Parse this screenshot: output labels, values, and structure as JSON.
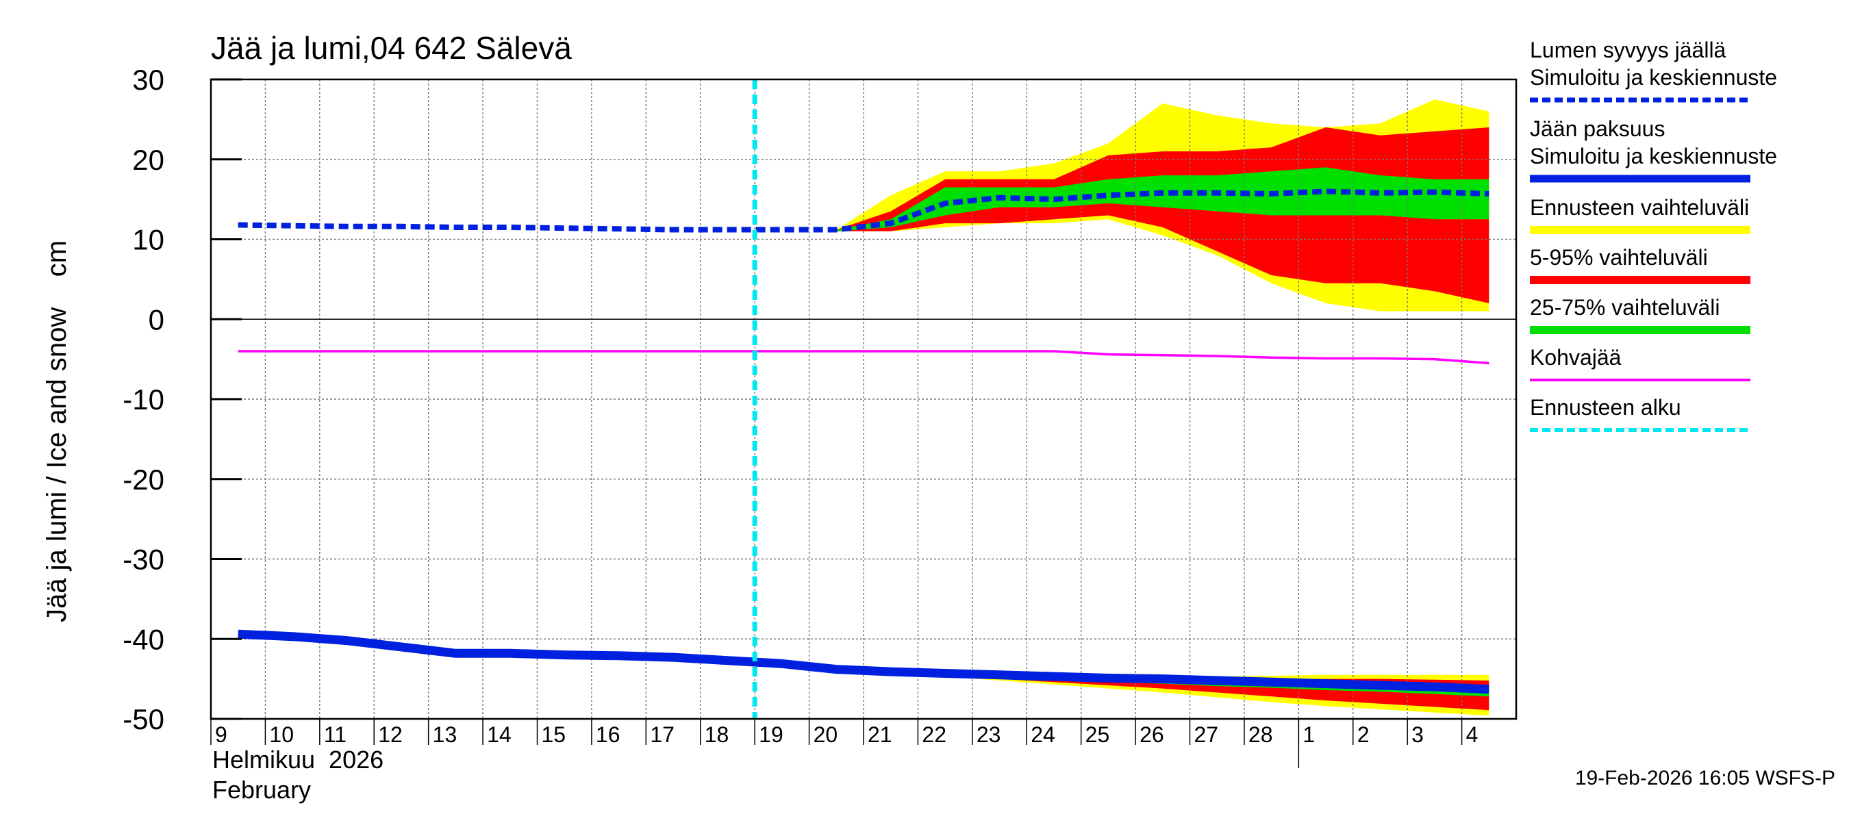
{
  "chart_data": {
    "type": "area",
    "title": "Jää ja lumi,04 642 Sälevä",
    "ylabel": "Jää ja lumi / Ice and snow    cm",
    "ylim": [
      -50,
      30
    ],
    "yticks": [
      30,
      20,
      10,
      0,
      -10,
      -20,
      -30,
      -40,
      -50
    ],
    "x_day_labels": [
      "9",
      "10",
      "11",
      "12",
      "13",
      "14",
      "15",
      "16",
      "17",
      "18",
      "19",
      "20",
      "21",
      "22",
      "23",
      "24",
      "25",
      "26",
      "27",
      "28",
      "1",
      "2",
      "3",
      "4"
    ],
    "x_dates": [
      "2026-02-09",
      "2026-02-10",
      "2026-02-11",
      "2026-02-12",
      "2026-02-13",
      "2026-02-14",
      "2026-02-15",
      "2026-02-16",
      "2026-02-17",
      "2026-02-18",
      "2026-02-19",
      "2026-02-20",
      "2026-02-21",
      "2026-02-22",
      "2026-02-23",
      "2026-02-24",
      "2026-02-25",
      "2026-02-26",
      "2026-02-27",
      "2026-02-28",
      "2026-03-01",
      "2026-03-02",
      "2026-03-03",
      "2026-03-04"
    ],
    "month_label_line1": "Helmikuu  2026",
    "month_label_line2": "February",
    "forecast_start": "2026-02-19",
    "grid": true,
    "legend_position": "right",
    "series": [
      {
        "name": "Ennusteen vaihteluväli",
        "group": "snow",
        "kind": "band",
        "color": "#ffff00",
        "x": [
          "2026-02-20",
          "2026-02-21",
          "2026-02-22",
          "2026-02-23",
          "2026-02-24",
          "2026-02-25",
          "2026-02-26",
          "2026-02-27",
          "2026-02-28",
          "2026-03-01",
          "2026-03-02",
          "2026-03-03",
          "2026-03-04"
        ],
        "upper": [
          11.2,
          15.5,
          18.5,
          18.5,
          19.5,
          22,
          27,
          25.5,
          24.5,
          24,
          24.5,
          27.5,
          26
        ],
        "lower": [
          11.0,
          11.0,
          11.5,
          12,
          12,
          12.5,
          10.5,
          8,
          4.5,
          2,
          1,
          1,
          1
        ]
      },
      {
        "name": "5-95% vaihteluväli",
        "group": "snow",
        "kind": "band",
        "color": "#ff0000",
        "x": [
          "2026-02-20",
          "2026-02-21",
          "2026-02-22",
          "2026-02-23",
          "2026-02-24",
          "2026-02-25",
          "2026-02-26",
          "2026-02-27",
          "2026-02-28",
          "2026-03-01",
          "2026-03-02",
          "2026-03-03",
          "2026-03-04"
        ],
        "upper": [
          11.2,
          13.5,
          17.5,
          17.5,
          17.5,
          20.5,
          21,
          21,
          21.5,
          24,
          23,
          23.5,
          24
        ],
        "lower": [
          11.0,
          11.0,
          12,
          12,
          12.5,
          13,
          11.5,
          8.5,
          5.5,
          4.5,
          4.5,
          3.5,
          2
        ]
      },
      {
        "name": "25-75% vaihteluväli",
        "group": "snow",
        "kind": "band",
        "color": "#00e000",
        "x": [
          "2026-02-20",
          "2026-02-21",
          "2026-02-22",
          "2026-02-23",
          "2026-02-24",
          "2026-02-25",
          "2026-02-26",
          "2026-02-27",
          "2026-02-28",
          "2026-03-01",
          "2026-03-02",
          "2026-03-03",
          "2026-03-04"
        ],
        "upper": [
          11.2,
          12.5,
          16.5,
          16.5,
          16.5,
          17.5,
          18,
          18,
          18.5,
          19,
          18,
          17.5,
          17.5
        ],
        "lower": [
          11.0,
          11.5,
          13,
          14,
          14,
          14.5,
          14,
          13.5,
          13,
          13,
          13,
          12.5,
          12.5
        ]
      },
      {
        "name": "Simuloitu ja keskiennuste",
        "group": "snow",
        "kind": "line",
        "color": "#0020e0",
        "dashed": true,
        "x": [
          "2026-02-09",
          "2026-02-10",
          "2026-02-11",
          "2026-02-12",
          "2026-02-13",
          "2026-02-14",
          "2026-02-15",
          "2026-02-16",
          "2026-02-17",
          "2026-02-18",
          "2026-02-19",
          "2026-02-20",
          "2026-02-21",
          "2026-02-22",
          "2026-02-23",
          "2026-02-24",
          "2026-02-25",
          "2026-02-26",
          "2026-02-27",
          "2026-02-28",
          "2026-03-01",
          "2026-03-02",
          "2026-03-03",
          "2026-03-04"
        ],
        "values": [
          11.8,
          11.7,
          11.6,
          11.6,
          11.5,
          11.5,
          11.4,
          11.3,
          11.2,
          11.2,
          11.2,
          11.2,
          12.0,
          14.5,
          15.2,
          15.0,
          15.5,
          15.8,
          15.8,
          15.7,
          16.0,
          15.8,
          15.9,
          15.7
        ]
      },
      {
        "name": "Kohvajää",
        "kind": "line",
        "color": "#ff00ff",
        "x": [
          "2026-02-09",
          "2026-02-10",
          "2026-02-11",
          "2026-02-12",
          "2026-02-13",
          "2026-02-14",
          "2026-02-15",
          "2026-02-16",
          "2026-02-17",
          "2026-02-18",
          "2026-02-19",
          "2026-02-20",
          "2026-02-21",
          "2026-02-22",
          "2026-02-23",
          "2026-02-24",
          "2026-02-25",
          "2026-02-26",
          "2026-02-27",
          "2026-02-28",
          "2026-03-01",
          "2026-03-02",
          "2026-03-03",
          "2026-03-04"
        ],
        "values": [
          -4.0,
          -4.0,
          -4.0,
          -4.0,
          -4.0,
          -4.0,
          -4.0,
          -4.0,
          -4.0,
          -4.0,
          -4.0,
          -4.0,
          -4.0,
          -4.0,
          -4.0,
          -4.0,
          -4.4,
          -4.5,
          -4.6,
          -4.8,
          -4.9,
          -4.9,
          -5.0,
          -5.5
        ]
      },
      {
        "name": "Ennusteen vaihteluväli",
        "group": "ice",
        "kind": "band",
        "color": "#ffff00",
        "legend": false,
        "x": [
          "2026-02-20",
          "2026-02-21",
          "2026-02-22",
          "2026-02-23",
          "2026-02-24",
          "2026-02-25",
          "2026-02-26",
          "2026-02-27",
          "2026-02-28",
          "2026-03-01",
          "2026-03-02",
          "2026-03-03",
          "2026-03-04"
        ],
        "upper": [
          -43.8,
          -44.0,
          -44.3,
          -44.5,
          -44.7,
          -44.8,
          -44.8,
          -44.7,
          -44.6,
          -44.5,
          -44.5,
          -44.5,
          -44.5
        ],
        "lower": [
          -44.0,
          -44.3,
          -44.7,
          -45.2,
          -45.7,
          -46.2,
          -46.7,
          -47.3,
          -47.9,
          -48.4,
          -48.8,
          -49.2,
          -49.6
        ]
      },
      {
        "name": "5-95% vaihteluväli",
        "group": "ice",
        "kind": "band",
        "color": "#ff0000",
        "legend": false,
        "x": [
          "2026-02-20",
          "2026-02-21",
          "2026-02-22",
          "2026-02-23",
          "2026-02-24",
          "2026-02-25",
          "2026-02-26",
          "2026-02-27",
          "2026-02-28",
          "2026-03-01",
          "2026-03-02",
          "2026-03-03",
          "2026-03-04"
        ],
        "upper": [
          -43.8,
          -44.0,
          -44.3,
          -44.6,
          -44.8,
          -45.0,
          -45.0,
          -45.0,
          -45.0,
          -45.0,
          -45.0,
          -45.1,
          -45.2
        ],
        "lower": [
          -44.0,
          -44.3,
          -44.6,
          -45.0,
          -45.4,
          -45.8,
          -46.2,
          -46.7,
          -47.2,
          -47.7,
          -48.1,
          -48.5,
          -48.9
        ]
      },
      {
        "name": "25-75% vaihteluväli",
        "group": "ice",
        "kind": "band",
        "color": "#00e000",
        "legend": false,
        "x": [
          "2026-02-20",
          "2026-02-21",
          "2026-02-22",
          "2026-02-23",
          "2026-02-24",
          "2026-02-25",
          "2026-02-26",
          "2026-02-27",
          "2026-02-28",
          "2026-03-01",
          "2026-03-02",
          "2026-03-03",
          "2026-03-04"
        ],
        "upper": [
          -43.8,
          -44.1,
          -44.4,
          -44.7,
          -44.9,
          -45.1,
          -45.2,
          -45.3,
          -45.4,
          -45.5,
          -45.6,
          -45.7,
          -45.8
        ],
        "lower": [
          -43.9,
          -44.2,
          -44.5,
          -44.8,
          -45.1,
          -45.4,
          -45.6,
          -45.9,
          -46.1,
          -46.4,
          -46.6,
          -46.9,
          -47.2
        ]
      },
      {
        "name": "Simuloitu ja keskiennuste",
        "group": "ice",
        "kind": "line",
        "color": "#0020e0",
        "dashed": false,
        "x": [
          "2026-02-09",
          "2026-02-10",
          "2026-02-11",
          "2026-02-12",
          "2026-02-13",
          "2026-02-14",
          "2026-02-15",
          "2026-02-16",
          "2026-02-17",
          "2026-02-18",
          "2026-02-19",
          "2026-02-20",
          "2026-02-21",
          "2026-02-22",
          "2026-02-23",
          "2026-02-24",
          "2026-02-25",
          "2026-02-26",
          "2026-02-27",
          "2026-02-28",
          "2026-03-01",
          "2026-03-02",
          "2026-03-03",
          "2026-03-04"
        ],
        "values": [
          -39.4,
          -39.7,
          -40.2,
          -41.0,
          -41.8,
          -41.8,
          -42.0,
          -42.1,
          -42.3,
          -42.7,
          -43.1,
          -43.8,
          -44.1,
          -44.3,
          -44.5,
          -44.7,
          -44.9,
          -45.0,
          -45.2,
          -45.4,
          -45.6,
          -45.8,
          -46.0,
          -46.3
        ]
      }
    ],
    "legend": {
      "items": [
        {
          "line1": "Lumen syvyys jäällä",
          "line2": "Simuloitu ja keskiennuste",
          "color": "#0020e0",
          "style": "dashed",
          "width": 7
        },
        {
          "line1": "Jään paksuus",
          "line2": "Simuloitu ja keskiennuste",
          "color": "#0020e0",
          "style": "solid",
          "width": 11
        },
        {
          "line1": "Ennusteen vaihteluväli",
          "color": "#ffff00",
          "style": "solid",
          "width": 12
        },
        {
          "line1": "5-95% vaihteluväli",
          "color": "#ff0000",
          "style": "solid",
          "width": 12
        },
        {
          "line1": "25-75% vaihteluväli",
          "color": "#00e000",
          "style": "solid",
          "width": 12
        },
        {
          "line1": "Kohvajää",
          "color": "#ff00ff",
          "style": "solid",
          "width": 4
        },
        {
          "line1": "Ennusteen alku",
          "color": "#00e8f0",
          "style": "dashed",
          "width": 6
        }
      ]
    },
    "forecast_line_color": "#00e8f0",
    "timestamp": "19-Feb-2026 16:05 WSFS-P"
  }
}
